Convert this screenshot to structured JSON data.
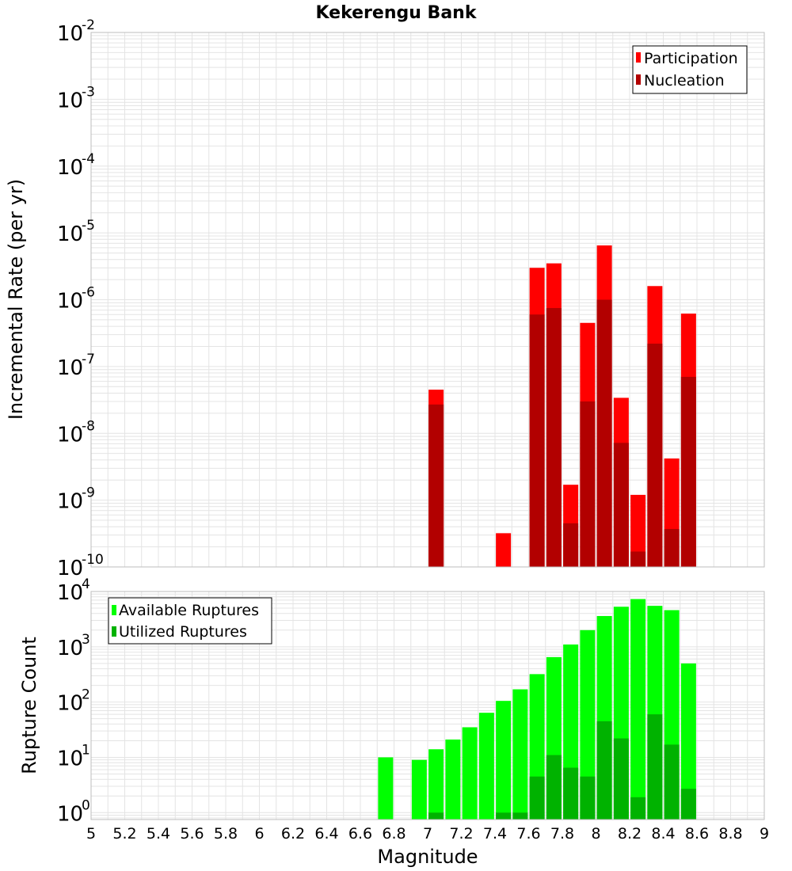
{
  "chart_data": [
    {
      "type": "bar",
      "title": "Kekerengu Bank",
      "xlabel": "",
      "ylabel": "Incremental Rate (per yr)",
      "yscale": "log",
      "xlim": [
        5,
        9
      ],
      "ylim": [
        1e-10,
        0.01
      ],
      "yticks": [
        {
          "base": "10",
          "exp": "-2"
        },
        {
          "base": "10",
          "exp": "-3"
        },
        {
          "base": "10",
          "exp": "-4"
        },
        {
          "base": "10",
          "exp": "-5"
        },
        {
          "base": "10",
          "exp": "-6"
        },
        {
          "base": "10",
          "exp": "-7"
        },
        {
          "base": "10",
          "exp": "-8"
        },
        {
          "base": "10",
          "exp": "-9"
        },
        {
          "base": "10",
          "exp": "-10"
        }
      ],
      "grid": true,
      "legend_position": "top-right",
      "series": [
        {
          "name": "Participation",
          "color": "#ff0000",
          "x": [
            7.05,
            7.45,
            7.65,
            7.75,
            7.85,
            7.95,
            8.05,
            8.15,
            8.25,
            8.35,
            8.45,
            8.55
          ],
          "values": [
            4.5e-08,
            3.2e-10,
            3e-06,
            3.5e-06,
            1.7e-09,
            4.5e-07,
            6.5e-06,
            3.4e-08,
            1.2e-09,
            1.6e-06,
            4.2e-09,
            6.2e-07
          ]
        },
        {
          "name": "Nucleation",
          "color": "#b20000",
          "x": [
            7.05,
            7.65,
            7.75,
            7.85,
            7.95,
            8.05,
            8.15,
            8.25,
            8.35,
            8.45,
            8.55
          ],
          "values": [
            2.7e-08,
            6e-07,
            7.5e-07,
            4.5e-10,
            3e-08,
            1e-06,
            7.2e-09,
            1.7e-10,
            2.2e-07,
            3.7e-10,
            7e-08
          ]
        }
      ]
    },
    {
      "type": "bar",
      "title": "",
      "xlabel": "Magnitude",
      "ylabel": "Rupture Count",
      "yscale": "log",
      "xlim": [
        5,
        9
      ],
      "ylim": [
        0.75,
        10000
      ],
      "yticks": [
        {
          "base": "10",
          "exp": "4"
        },
        {
          "base": "10",
          "exp": "3"
        },
        {
          "base": "10",
          "exp": "2"
        },
        {
          "base": "10",
          "exp": "1"
        },
        {
          "base": "10",
          "exp": "0"
        }
      ],
      "xticks": [
        "5",
        "5.2",
        "5.4",
        "5.6",
        "5.8",
        "6",
        "6.2",
        "6.4",
        "6.6",
        "6.8",
        "7",
        "7.2",
        "7.4",
        "7.6",
        "7.8",
        "8",
        "8.2",
        "8.4",
        "8.6",
        "8.8",
        "9"
      ],
      "grid": true,
      "legend_position": "top-left",
      "series": [
        {
          "name": "Available Ruptures",
          "color": "#00ff00",
          "x": [
            6.75,
            6.95,
            7.05,
            7.15,
            7.25,
            7.35,
            7.45,
            7.55,
            7.65,
            7.75,
            7.85,
            7.95,
            8.05,
            8.15,
            8.25,
            8.35,
            8.45,
            8.55
          ],
          "values": [
            10,
            9,
            14,
            21,
            35,
            64,
            105,
            170,
            320,
            650,
            1100,
            2000,
            3600,
            5300,
            7300,
            5500,
            4600,
            500
          ]
        },
        {
          "name": "Utilized Ruptures",
          "color": "#00b200",
          "x": [
            7.05,
            7.45,
            7.55,
            7.65,
            7.75,
            7.85,
            7.95,
            8.05,
            8.15,
            8.25,
            8.35,
            8.45,
            8.55
          ],
          "values": [
            1,
            1,
            1,
            4.5,
            11,
            6.5,
            4.5,
            45,
            22,
            1.9,
            60,
            17,
            2.7
          ]
        }
      ]
    }
  ]
}
